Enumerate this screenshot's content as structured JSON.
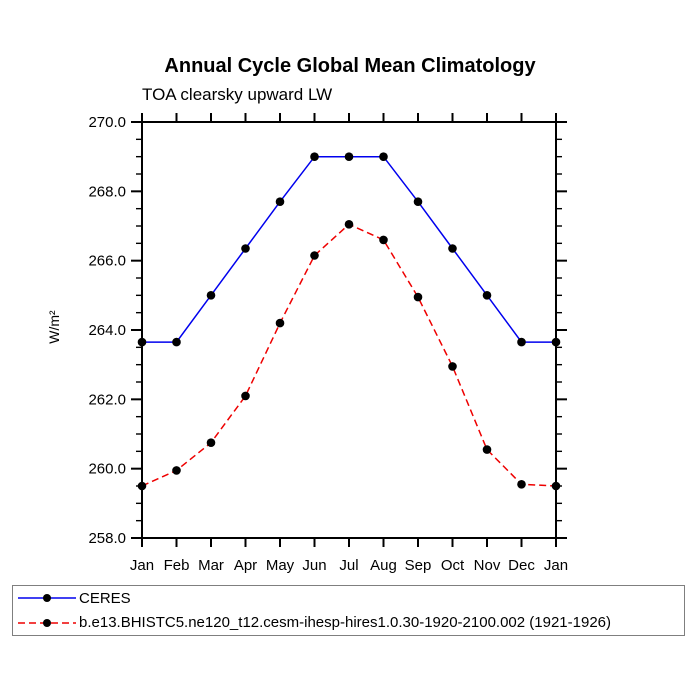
{
  "chart_data": {
    "type": "line",
    "title": "Annual Cycle Global Mean Climatology",
    "subtitle": "TOA clearsky upward LW",
    "ylabel": "W/m²",
    "x_categories": [
      "Jan",
      "Feb",
      "Mar",
      "Apr",
      "May",
      "Jun",
      "Jul",
      "Aug",
      "Sep",
      "Oct",
      "Nov",
      "Dec",
      "Jan"
    ],
    "ylim": [
      258.0,
      270.0
    ],
    "ytick_major": 2.0,
    "ytick_minor": 0.5,
    "ytick_label_format_decimals": 1,
    "grid": "off",
    "legend_position": "bottom",
    "series": [
      {
        "name": "CERES",
        "color": "#0000ee",
        "style": "solid",
        "marker": "circle",
        "marker_color": "#000000",
        "values": [
          263.65,
          263.65,
          265.0,
          266.35,
          267.7,
          269.0,
          269.0,
          269.0,
          267.7,
          266.35,
          265.0,
          263.65,
          263.65
        ]
      },
      {
        "name": "b.e13.BHISTC5.ne120_t12.cesm-ihesp-hires1.0.30-1920-2100.002 (1921-1926)",
        "color": "#ee0000",
        "style": "dashed",
        "marker": "circle",
        "marker_color": "#000000",
        "values": [
          259.5,
          259.95,
          260.75,
          262.1,
          264.2,
          266.15,
          267.05,
          266.6,
          264.95,
          262.95,
          260.55,
          259.55,
          259.5
        ]
      }
    ]
  }
}
